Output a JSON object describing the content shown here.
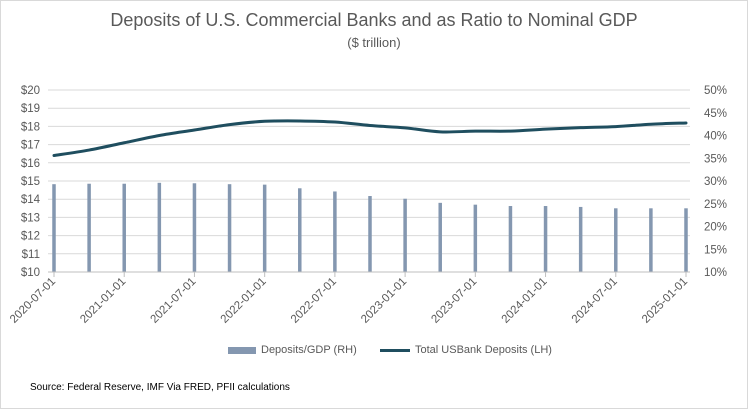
{
  "chart_data": {
    "type": "bar+line",
    "title": "Deposits of U.S. Commercial  Banks and as Ratio to Nominal GDP",
    "subtitle": "($ trillion)",
    "categories": [
      "2020-07-01",
      "2020-10-01",
      "2021-01-01",
      "2021-04-01",
      "2021-07-01",
      "2021-10-01",
      "2022-01-01",
      "2022-04-01",
      "2022-07-01",
      "2022-10-01",
      "2023-01-01",
      "2023-04-01",
      "2023-07-01",
      "2023-10-01",
      "2024-01-01",
      "2024-04-01",
      "2024-07-01",
      "2024-10-01",
      "2025-01-01"
    ],
    "x_tick_labels": [
      "2020-07-01",
      "2021-01-01",
      "2021-07-01",
      "2022-01-01",
      "2022-07-01",
      "2023-01-01",
      "2023-07-01",
      "2024-01-01",
      "2024-07-01",
      "2025-01-01"
    ],
    "series": [
      {
        "name": "Deposits/GDP (RH)",
        "type": "bar",
        "axis": "right",
        "color": "#8497b0",
        "values": [
          0.293,
          0.294,
          0.294,
          0.296,
          0.295,
          0.293,
          0.292,
          0.284,
          0.277,
          0.267,
          0.261,
          0.252,
          0.248,
          0.245,
          0.245,
          0.243,
          0.24,
          0.24,
          0.24
        ]
      },
      {
        "name": "Total USBank Deposits (LH)",
        "type": "line",
        "axis": "left",
        "color": "#1f4e5f",
        "values": [
          16.4,
          16.7,
          17.1,
          17.5,
          17.8,
          18.1,
          18.28,
          18.3,
          18.24,
          18.05,
          17.92,
          17.7,
          17.74,
          17.74,
          17.85,
          17.93,
          17.99,
          18.12,
          18.19
        ]
      }
    ],
    "y_left": {
      "ylim": [
        10,
        20
      ],
      "ticks": [
        "$10",
        "$11",
        "$12",
        "$13",
        "$14",
        "$15",
        "$16",
        "$17",
        "$18",
        "$19",
        "$20"
      ]
    },
    "y_right": {
      "ylim": [
        0.1,
        0.5
      ],
      "ticks": [
        "10%",
        "15%",
        "20%",
        "25%",
        "30%",
        "35%",
        "40%",
        "45%",
        "50%"
      ]
    },
    "grid": true,
    "legend_position": "bottom"
  },
  "source_note": "Source: Federal Reserve, IMF Via FRED, PFII calculations"
}
